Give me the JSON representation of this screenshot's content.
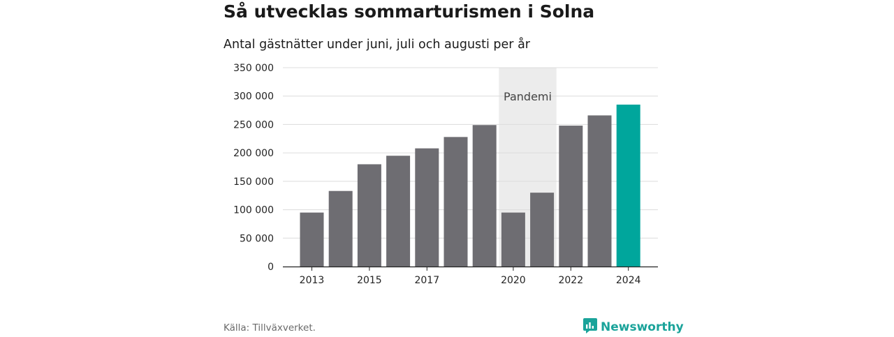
{
  "title": "Så utvecklas sommarturismen i Solna",
  "subtitle": "Antal gästnätter under juni, juli och augusti per år",
  "source": "Källa: Tillväxverket.",
  "brand": {
    "name": "Newsworthy",
    "icon": "newsworthy-logo-icon",
    "color": "#1aa39a"
  },
  "chart_data": {
    "type": "bar",
    "categories": [
      "2013",
      "2014",
      "2015",
      "2016",
      "2017",
      "2018",
      "2019",
      "2020",
      "2021",
      "2022",
      "2023",
      "2024"
    ],
    "x_tick_labels": [
      "2013",
      "",
      "2015",
      "",
      "2017",
      "",
      "",
      "2020",
      "",
      "2022",
      "",
      "2024"
    ],
    "values": [
      95000,
      133000,
      180000,
      195000,
      208000,
      228000,
      249000,
      95000,
      130000,
      248000,
      266000,
      285000
    ],
    "colors": {
      "default": "#6e6d72",
      "highlight": "#00a69c",
      "highlight_category": "2024",
      "shade": "#ececec",
      "grid": "#dcdcdc",
      "axis": "#222222"
    },
    "ylim": [
      0,
      350000
    ],
    "y_ticks": [
      {
        "value": 0,
        "label": "0"
      },
      {
        "value": 50000,
        "label": "50 000"
      },
      {
        "value": 100000,
        "label": "100 000"
      },
      {
        "value": 150000,
        "label": "150 000"
      },
      {
        "value": 200000,
        "label": "200 000"
      },
      {
        "value": 250000,
        "label": "250 000"
      },
      {
        "value": 300000,
        "label": "300 000"
      },
      {
        "value": 350000,
        "label": "350 000"
      }
    ],
    "annotation": {
      "label": "Pandemi",
      "from_category": "2020",
      "to_category": "2021"
    },
    "xlabel": "",
    "ylabel": "",
    "grid": true
  }
}
